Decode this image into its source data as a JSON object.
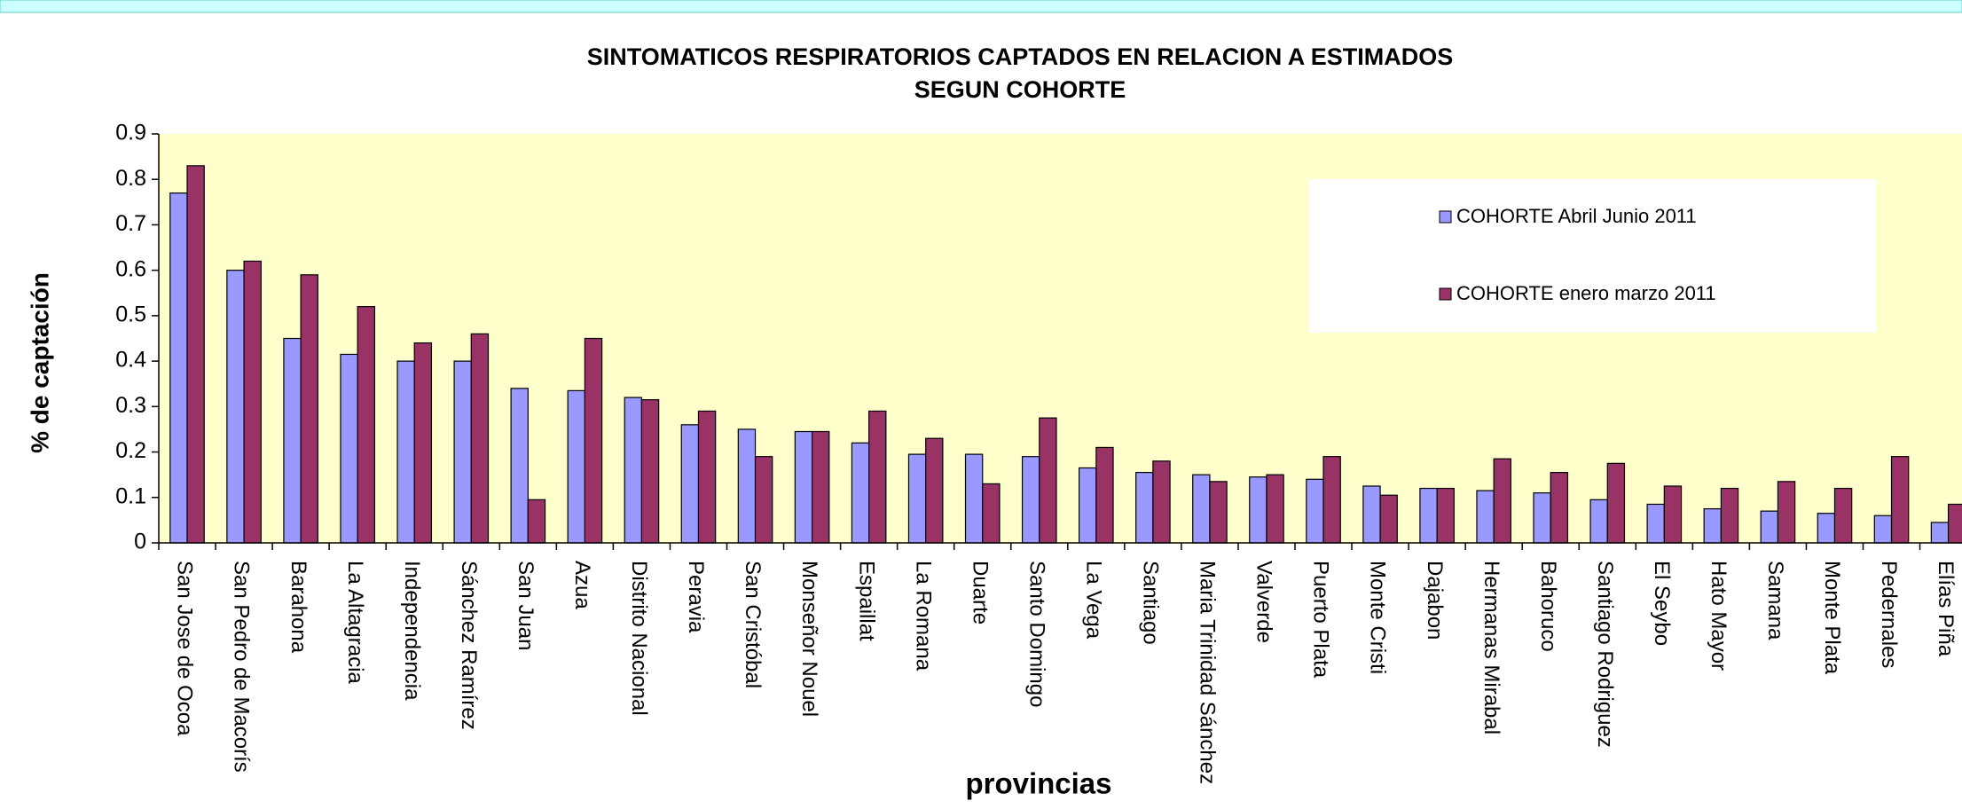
{
  "chart_data": {
    "type": "bar",
    "title": [
      "SINTOMATICOS  RESPIRATORIOS  CAPTADOS  EN RELACION A ESTIMADOS",
      "SEGUN COHORTE"
    ],
    "y_label": "% de captación",
    "x_label": "provincias",
    "categories": [
      "San Jose de Ocoa",
      "San Pedro de Macorís",
      "Barahona",
      "La Altagracia",
      "Independencia",
      "Sánchez Ramírez",
      "San Juan",
      "Azua",
      "Distrito Nacional",
      "Peravia",
      "San Cristóbal",
      "Monseñor Nouel",
      "Espaillat",
      "La Romana",
      "Duarte",
      "Santo Domingo",
      "La Vega",
      "Santiago",
      "Maria Trinidad Sánchez",
      "Valverde",
      "Puerto Plata",
      "Monte Cristi",
      "Dajabon",
      "Hermanas Mirabal",
      "Bahoruco",
      "Santiago Rodriguez",
      "El Seybo",
      "Hato Mayor",
      "Samana",
      "Monte Plata",
      "Pedernales",
      "Elías Piña"
    ],
    "series": [
      {
        "name": "COHORTE Abril Junio 2011",
        "color": "#9999ff",
        "values": [
          0.77,
          0.6,
          0.45,
          0.415,
          0.4,
          0.4,
          0.34,
          0.335,
          0.32,
          0.26,
          0.25,
          0.245,
          0.22,
          0.195,
          0.195,
          0.19,
          0.165,
          0.155,
          0.15,
          0.145,
          0.14,
          0.125,
          0.12,
          0.115,
          0.11,
          0.095,
          0.085,
          0.075,
          0.07,
          0.065,
          0.06,
          0.045
        ]
      },
      {
        "name": "COHORTE enero marzo 2011",
        "color": "#993366",
        "values": [
          0.83,
          0.62,
          0.59,
          0.52,
          0.44,
          0.46,
          0.095,
          0.45,
          0.315,
          0.29,
          0.19,
          0.245,
          0.29,
          0.23,
          0.13,
          0.275,
          0.21,
          0.18,
          0.135,
          0.15,
          0.19,
          0.105,
          0.12,
          0.185,
          0.155,
          0.175,
          0.125,
          0.12,
          0.135,
          0.12,
          0.19,
          0.085
        ]
      }
    ],
    "ylim": [
      0,
      0.9
    ],
    "yticks": [
      0,
      0.1,
      0.2,
      0.3,
      0.4,
      0.5,
      0.6,
      0.7,
      0.8,
      0.9
    ],
    "plot_background": "#ffffcc"
  }
}
